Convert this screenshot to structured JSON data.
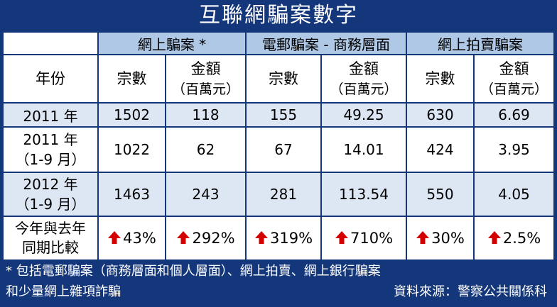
{
  "title": "互聯網騙案數字",
  "groups": [
    "網上騙案 *",
    "電郵騙案 - 商務層面",
    "網上拍賣騙案"
  ],
  "header": {
    "year": "年份",
    "count": "宗數",
    "amount": "金額",
    "unit": "（百萬元）"
  },
  "rows": [
    {
      "year1": "2011 年",
      "year2": "",
      "values": [
        "1502",
        "118",
        "155",
        "49.25",
        "630",
        "6.69"
      ]
    },
    {
      "year1": "2011 年",
      "year2": "（1-9 月）",
      "values": [
        "1022",
        "62",
        "67",
        "14.01",
        "424",
        "3.95"
      ]
    },
    {
      "year1": "2012 年",
      "year2": "（1-9 月）",
      "values": [
        "1463",
        "243",
        "281",
        "113.54",
        "550",
        "4.05"
      ]
    }
  ],
  "compare": {
    "label1": "今年與去年",
    "label2": "同期比較",
    "values": [
      "43%",
      "292%",
      "319%",
      "710%",
      "30%",
      "2.5%"
    ],
    "icon": "up-arrow-icon",
    "arrow_color": "#d40000"
  },
  "footnote": {
    "line1": "* 包括電郵騙案（商務層面和個人層面）、網上拍賣、網上銀行騙案",
    "line2": "和少量網上雜項詐騙",
    "source": "資料來源：警察公共關係科"
  },
  "colors": {
    "background": "#14367a",
    "group_header": "#aec8e6",
    "stripe": "#dde7f4"
  }
}
